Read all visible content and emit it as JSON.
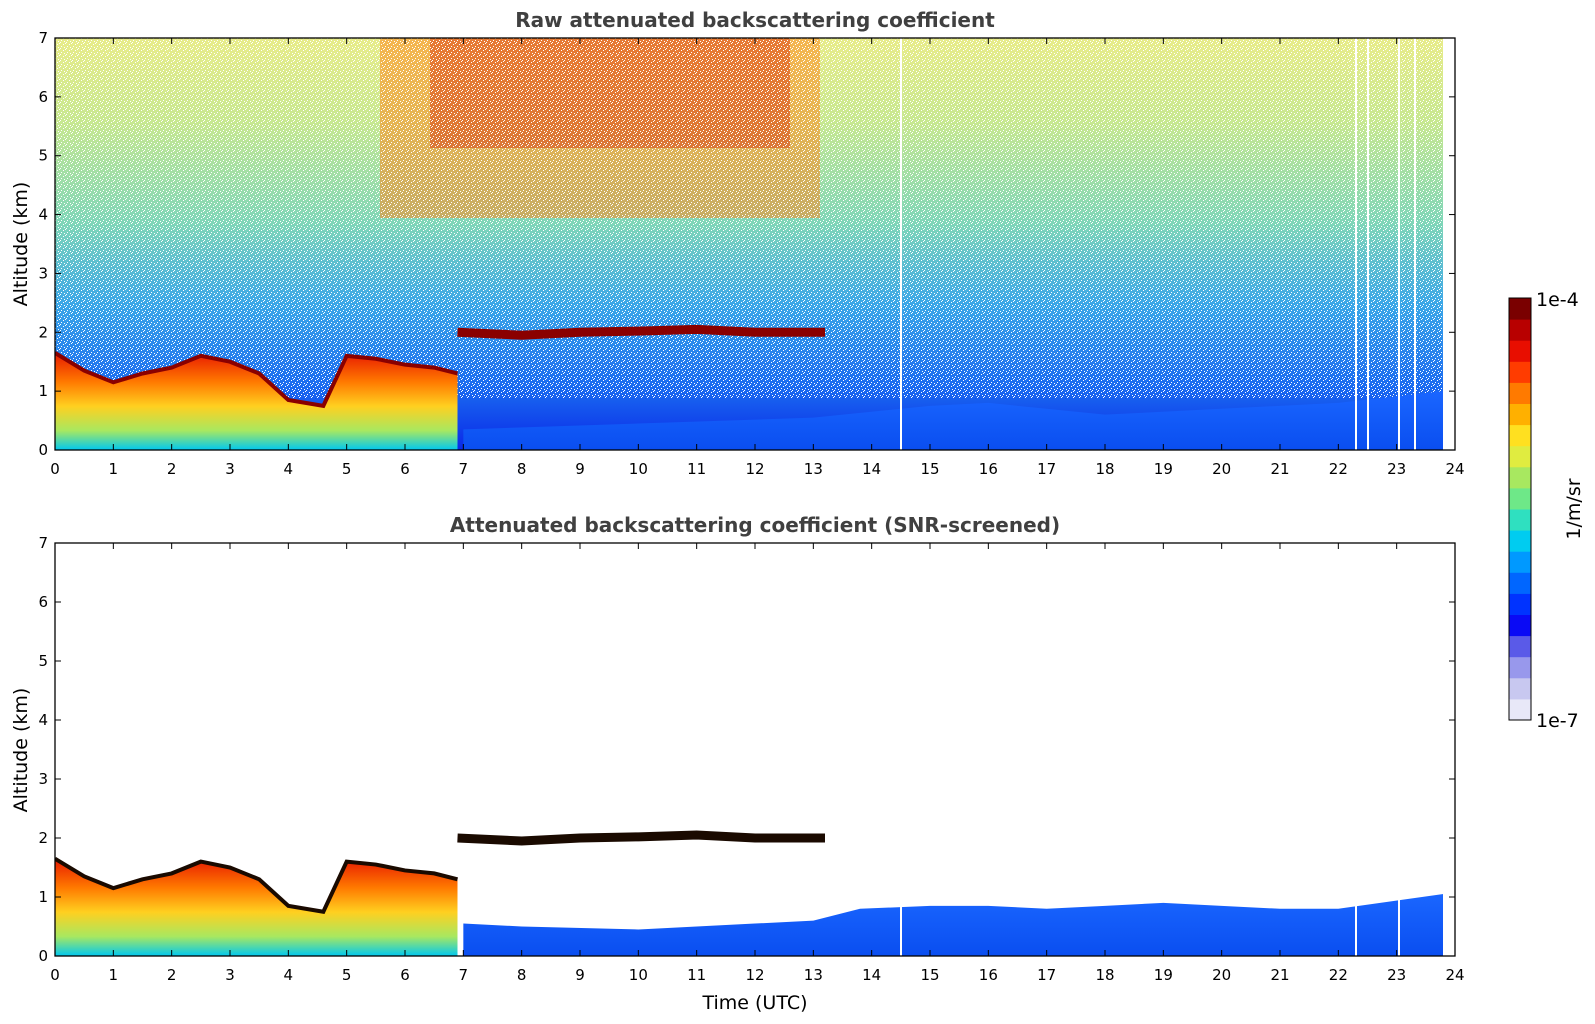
{
  "colors": {
    "background": "#ffffff",
    "colormap": [
      "#e8e8f8",
      "#c8c8f0",
      "#9898ec",
      "#5a5ae8",
      "#0a0af5",
      "#0033ff",
      "#0066ff",
      "#0099ff",
      "#00ccf0",
      "#2fe0c0",
      "#6ee888",
      "#a8e860",
      "#e0ec40",
      "#ffe020",
      "#ffb000",
      "#ff7a00",
      "#ff3c00",
      "#e80e00",
      "#b80000",
      "#7a0000"
    ]
  },
  "chart_data": [
    {
      "type": "heatmap",
      "title": "Raw attenuated backscattering coefficient",
      "xlabel": "",
      "ylabel": "Altitude (km)",
      "xlim": [
        0,
        24
      ],
      "ylim": [
        0,
        7
      ],
      "xticks": [
        "0",
        "1",
        "2",
        "3",
        "4",
        "5",
        "6",
        "7",
        "8",
        "9",
        "10",
        "11",
        "12",
        "13",
        "14",
        "15",
        "16",
        "17",
        "18",
        "19",
        "20",
        "21",
        "22",
        "23",
        "24"
      ],
      "yticks": [
        "0",
        "1",
        "2",
        "3",
        "4",
        "5",
        "6",
        "7"
      ],
      "boundary_layer_top_km": [
        [
          0,
          1.65
        ],
        [
          0.5,
          1.35
        ],
        [
          1,
          1.15
        ],
        [
          1.5,
          1.3
        ],
        [
          2,
          1.4
        ],
        [
          2.5,
          1.6
        ],
        [
          3,
          1.5
        ],
        [
          3.5,
          1.3
        ],
        [
          4,
          0.85
        ],
        [
          4.6,
          0.75
        ],
        [
          5,
          1.6
        ],
        [
          5.5,
          1.55
        ],
        [
          6,
          1.45
        ],
        [
          6.5,
          1.4
        ],
        [
          6.9,
          1.3
        ]
      ],
      "cloud_layer_km": {
        "x_start": 6.9,
        "x_end": 13.2,
        "altitude": [
          [
            6.9,
            2.0
          ],
          [
            8,
            1.95
          ],
          [
            9,
            2.0
          ],
          [
            10,
            2.02
          ],
          [
            11,
            2.05
          ],
          [
            12,
            2.0
          ],
          [
            13.2,
            2.0
          ]
        ]
      },
      "low_layer_top_km": [
        [
          7,
          0.35
        ],
        [
          10,
          0.45
        ],
        [
          13,
          0.55
        ],
        [
          15,
          0.75
        ],
        [
          16,
          0.8
        ],
        [
          18,
          0.6
        ],
        [
          20,
          0.7
        ],
        [
          22,
          0.8
        ],
        [
          23.8,
          1.0
        ]
      ]
    },
    {
      "type": "heatmap",
      "title": "Attenuated backscattering coefficient (SNR-screened)",
      "xlabel": "Time (UTC)",
      "ylabel": "Altitude (km)",
      "xlim": [
        0,
        24
      ],
      "ylim": [
        0,
        7
      ],
      "xticks": [
        "0",
        "1",
        "2",
        "3",
        "4",
        "5",
        "6",
        "7",
        "8",
        "9",
        "10",
        "11",
        "12",
        "13",
        "14",
        "15",
        "16",
        "17",
        "18",
        "19",
        "20",
        "21",
        "22",
        "23",
        "24"
      ],
      "yticks": [
        "0",
        "1",
        "2",
        "3",
        "4",
        "5",
        "6",
        "7"
      ],
      "screened_low_layer_top_km": [
        [
          7,
          0.55
        ],
        [
          8,
          0.5
        ],
        [
          10,
          0.45
        ],
        [
          12,
          0.55
        ],
        [
          13,
          0.6
        ],
        [
          13.8,
          0.8
        ],
        [
          15,
          0.85
        ],
        [
          16,
          0.85
        ],
        [
          17,
          0.8
        ],
        [
          18,
          0.85
        ],
        [
          19,
          0.9
        ],
        [
          20,
          0.85
        ],
        [
          21,
          0.8
        ],
        [
          22,
          0.8
        ],
        [
          23.8,
          1.05
        ]
      ]
    }
  ],
  "colorbar": {
    "max_label": "1e-4",
    "min_label": "1e-7",
    "units_label": "1/m/sr"
  }
}
